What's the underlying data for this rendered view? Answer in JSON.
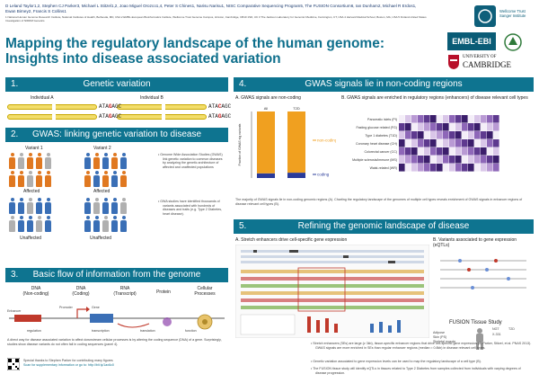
{
  "header": {
    "authors": "D Leland Taylor1,2, Stephen CJ Parker3, Michael L Stitzel1,2, Joao Miguel Orozco1,4, Peter S Chines1, Narisu Narisu1, NISC Comparative Sequencing Program5, The FUSION Consortium6, Ian Dunham2, Michael R Erdos1, Ewan Birney2, Francis S Collins1",
    "affiliations": "1 National Human Genome Research Institute, National Institutes of Health, Bethesda, MD, USA  2 EMBL-European Bioinformatics Institute, Wellcome Trust Genome Campus, Hinxton, Cambridge, CB10 1SD, UK  3 The Jackson Laboratory for Genomic Medicine, Farmington, CT, USA  4 Harvard Medical School, Boston, MA, USA  5 Finland-United States Investigation of NIDDM Genetics",
    "title_line1": "Mapping the regulatory landscape of the human genome:",
    "title_line2": "Insights into disease associated variation",
    "logo_sanger": "Wellcome Trust Sanger Institute",
    "logo_ebi": "EMBL-EBI",
    "logo_cam_line1": "UNIVERSITY OF",
    "logo_cam_line2": "CAMBRIDGE"
  },
  "sections": {
    "s1": {
      "num": "1.",
      "title": "Genetic variation",
      "ind_a": "Individual A",
      "ind_b": "Individual B",
      "seq_a_pre": "ATA",
      "seq_a_hl": "G",
      "seq_a_post": "AGC",
      "seq_b_pre": "ATA",
      "seq_b_hl": "C",
      "seq_b_post": "AGC"
    },
    "s2": {
      "num": "2.",
      "title": "GWAS: linking genetic variation to disease",
      "variant1": "Variant 1",
      "variant2": "Variant 2",
      "affected": "Affected",
      "unaffected": "Unaffected",
      "bullet1": "Genome Wide Association Studies (GWAS) link genetic variation to common diseases by analyzing the genetic architecture of affected and unaffected populations",
      "bullet2": "GWA studies have identified thousands of variants associated with hundreds of diseases and traits (e.g. Type 2 Diabetes, heart disease)."
    },
    "s3": {
      "num": "3.",
      "title": "Basic flow of information from the genome",
      "dna": "DNA",
      "dna_sub": "(Non-coding)",
      "dna2": "DNA",
      "dna2_sub": "(Coding)",
      "rna": "RNA",
      "rna_sub": "(Transcript)",
      "protein": "Protein",
      "cellular": "Cellular",
      "cellular_sub": "Processes",
      "enhancer": "Enhancer",
      "promoter": "Promoter",
      "gene": "Gene",
      "regulation": "regulation",
      "transcription": "transcription",
      "translation": "translation",
      "function": "function",
      "body": "A direct way for disease associated variation to affect downstream cellular processes is by altering the coding sequence (DNA) of a gene. Surprisingly, studies show disease variants do not often fall in coding sequences (panel 4).",
      "note1": "Special thanks to Stephen Parker for contributing many figures",
      "note2": "Scan for supplementary information or go to: http://bit.ly/1ax6c0"
    },
    "s4": {
      "num": "4.",
      "title": "GWAS signals lie in non-coding regions",
      "a_label": "A.",
      "a_title": "GWAS signals are non-coding",
      "b_label": "B.",
      "b_title": "GWAS signals are enriched in regulatory regions (enhancers) of disease relevant cell types",
      "bar_all": "All",
      "bar_t2d": "T2D",
      "legend_noncoding": "non-coding",
      "legend_coding": "coding",
      "ylabel": "Fraction of GWAS sig variants",
      "caption": "The majority of GWAS signals lie in non-coding genomic regions (A). Charting the regulatory landscape of the genomes of multiple cell types reveals enrichment of GWAS signals in enhancer regions of disease relevant cell types (B).",
      "heat_rows": [
        "Pancreatic islets (PI)",
        "Fasting glucose related (FG)",
        "Type 1 diabetes (T1D)",
        "Coronary heart disease (CH)",
        "Colorectal cancer (CC)",
        "Multiple sclerosis/immune (MS)",
        "Waist-related (WR)"
      ]
    },
    "s5": {
      "num": "5.",
      "title": "Refining the genomic landscape of disease",
      "a_label": "A.",
      "a_title": "Stretch enhancers drive cell-specific gene expression",
      "b_label": "B.",
      "b_title": "Variants associated to gene expression (eQTLs)",
      "fusion": "FUSION Tissue Study",
      "tissues": [
        "Adipose",
        "Skin (PS)",
        "Skeletal muscle"
      ],
      "ngt": "NGT",
      "t2d": "T2D",
      "n1": "X-331",
      "bullet1": "Stretch enhancers (SEs) are large (≥ 3kb), tissue-specific enhancer regions that drive cell-specific gene expression (A, Parker, Stitzel, et al. PNAS 2013). GWAS signals are more enriched in SEs than regular enhancer regions (median ≈ 0.8kb) in disease relevant cell types.",
      "bullet2": "Genetic variation associated to gene expression levels can be used to map the regulatory landscape of a cell type (B).",
      "bullet3": "The FUSION tissue study will identify eQTLs in tissues related to Type 2 Diabetes from samples collected from individuals with varying degrees of disease progression."
    }
  },
  "chart_data": {
    "type": "bar",
    "categories": [
      "All",
      "T2D"
    ],
    "series": [
      {
        "name": "non-coding",
        "values": [
          0.93,
          0.92
        ]
      },
      {
        "name": "coding",
        "values": [
          0.07,
          0.08
        ]
      }
    ],
    "ylim": [
      0,
      1
    ],
    "title": "GWAS signals are non-coding",
    "ylabel": "Fraction of GWAS sig variants"
  },
  "colors": {
    "accent": "#0e7490",
    "title": "#0e6f8c",
    "noncoding": "#f0a020",
    "coding": "#2a3b9a",
    "affected": "#e07820",
    "unaffected": "#3a6fb6"
  }
}
